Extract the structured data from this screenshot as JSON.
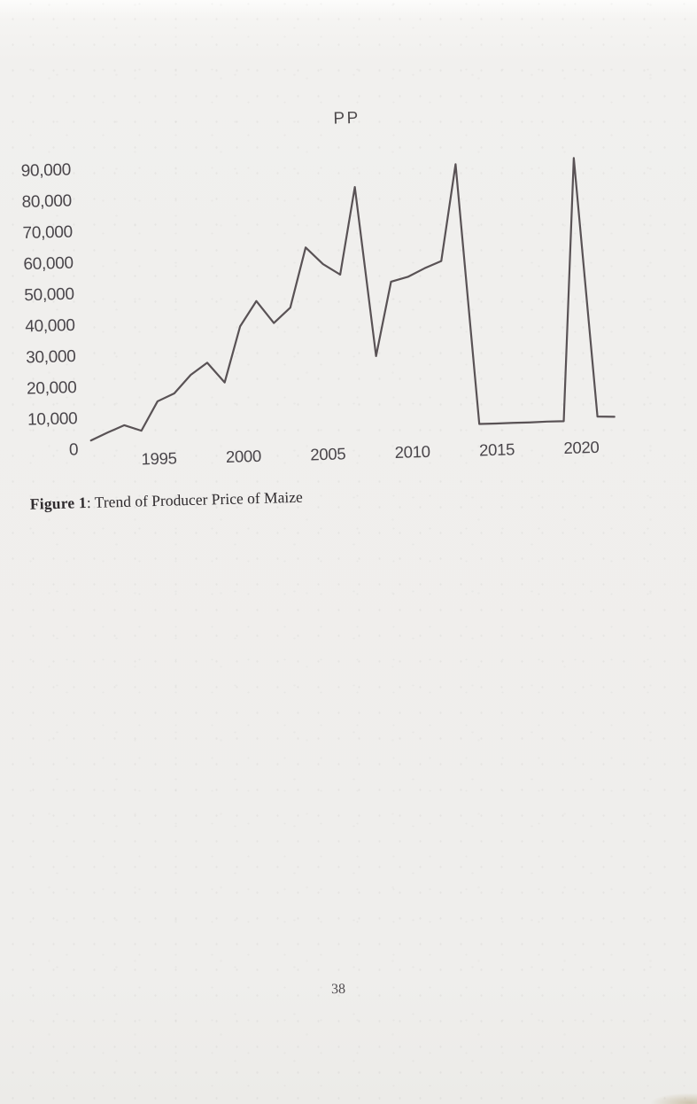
{
  "page": {
    "number": "38"
  },
  "figure": {
    "caption_label": "Figure 1",
    "caption_rest": ": Trend of Producer Price of Maize"
  },
  "chart_data": {
    "type": "line",
    "title": "PP",
    "xlabel": "",
    "ylabel": "",
    "x": [
      1991,
      1992,
      1993,
      1994,
      1995,
      1996,
      1997,
      1998,
      1999,
      2000,
      2001,
      2002,
      2003,
      2004,
      2005,
      2006,
      2007,
      2008,
      2009,
      2010,
      2011,
      2012,
      2013,
      2014,
      2015,
      2016,
      2017,
      2018,
      2019,
      2020,
      2021,
      2022
    ],
    "series": [
      {
        "name": "PP",
        "values": [
          2800,
          5200,
          7400,
          5500,
          14800,
          17200,
          23000,
          26800,
          20300,
          38200,
          46200,
          39000,
          43800,
          63000,
          57500,
          54000,
          82000,
          27500,
          51300,
          52700,
          55300,
          57500,
          88500,
          4800,
          4800,
          4900,
          4900,
          5000,
          5000,
          89500,
          6200,
          6000
        ]
      }
    ],
    "xlim": [
      1991,
      2022
    ],
    "ylim": [
      0,
      90000
    ],
    "y_ticks": [
      0,
      10000,
      20000,
      30000,
      40000,
      50000,
      60000,
      70000,
      80000,
      90000
    ],
    "x_ticks": [
      1995,
      2000,
      2005,
      2010,
      2015,
      2020
    ],
    "grid": false,
    "legend": "none",
    "axis_lines": false,
    "line_color": "#595255",
    "label_color": "#49454a"
  }
}
